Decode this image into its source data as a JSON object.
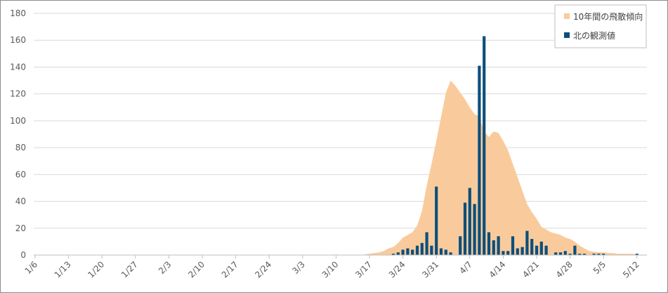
{
  "chart_data": {
    "type": "bar",
    "title": "",
    "xlabel": "",
    "ylabel": "",
    "ylim": [
      0,
      180
    ],
    "yticks": [
      0,
      20,
      40,
      60,
      80,
      100,
      120,
      140,
      160,
      180
    ],
    "grid": true,
    "legend_position": "top-right",
    "x_tick_labels": [
      "1/6",
      "1/13",
      "1/20",
      "1/27",
      "2/3",
      "2/10",
      "2/17",
      "2/24",
      "3/3",
      "3/10",
      "3/17",
      "3/24",
      "3/31",
      "4/7",
      "4/14",
      "4/21",
      "4/28",
      "5/5",
      "5/12"
    ],
    "series": [
      {
        "name": "10年間の飛散傾向",
        "kind": "area",
        "color": "#f9cb9c",
        "start_date": "3/16",
        "values": [
          0.5,
          1,
          1.5,
          2,
          3,
          5,
          6,
          9,
          13,
          15,
          17,
          22,
          33,
          52,
          68,
          85,
          103,
          121,
          130,
          126,
          121,
          116,
          110,
          105,
          103,
          92,
          88,
          92,
          91,
          85,
          78,
          68,
          58,
          48,
          38,
          32,
          27,
          21,
          19,
          17,
          16,
          15,
          13,
          12,
          10,
          7,
          5,
          3,
          2.5,
          2,
          2,
          1.5,
          1.5,
          1,
          1,
          1,
          1,
          0.5
        ]
      },
      {
        "name": "北の観測値",
        "kind": "bar",
        "color": "#0c4f7c",
        "start_date": "3/22",
        "values": [
          1,
          2,
          4,
          5,
          4,
          7,
          9,
          17,
          7,
          51,
          5,
          4,
          2,
          0,
          14,
          39,
          50,
          38,
          141,
          163,
          17,
          11,
          14,
          3,
          3,
          14,
          5,
          6,
          18,
          12,
          7,
          10,
          7,
          0,
          2,
          2,
          3,
          1,
          7,
          1,
          1,
          0,
          1,
          1,
          1,
          0,
          0,
          0,
          0,
          0,
          0,
          1
        ]
      }
    ]
  }
}
